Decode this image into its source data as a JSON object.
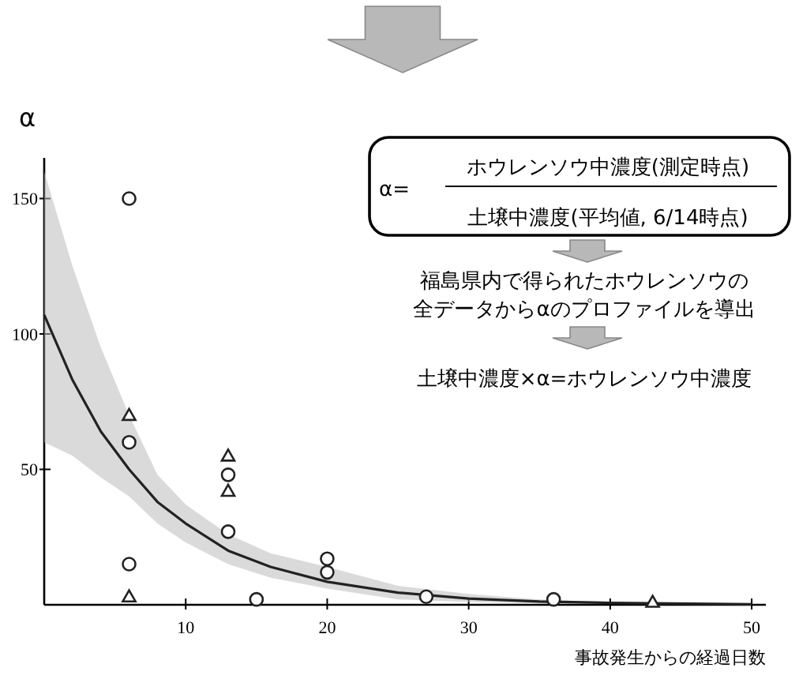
{
  "chart_data": {
    "type": "scatter",
    "ylabel": "α",
    "xlabel": "事故発生からの経過日数",
    "xlim": [
      0,
      51
    ],
    "ylim": [
      0,
      165
    ],
    "xticks": [
      10,
      20,
      30,
      40,
      50
    ],
    "yticks": [
      50,
      100,
      150
    ],
    "grid": false,
    "annotations": [
      "α=",
      "ホウレンソウ中濃度(測定時点)",
      "土壌中濃度(平均値, 6/14時点)",
      "福島県内で得られたホウレンソウの",
      "全データからαのプロファイルを導出",
      "土壌中濃度×α=ホウレンソウ中濃度"
    ],
    "series": [
      {
        "type": "line",
        "color": "#222222",
        "line_style": "solid",
        "x": [
          0,
          2,
          4,
          6,
          8,
          10,
          13,
          16,
          20,
          25,
          30,
          35,
          40,
          50
        ],
        "values": [
          107,
          83,
          64,
          50,
          38,
          30,
          20,
          14,
          8.5,
          4.5,
          2.3,
          1.2,
          0.7,
          0.2
        ],
        "lower": [
          60,
          55,
          47,
          40,
          30,
          23,
          15,
          10,
          6,
          2,
          1,
          0.5,
          0.3,
          0.1
        ],
        "upper": [
          160,
          125,
          95,
          70,
          48,
          37,
          26,
          19,
          14,
          7,
          4,
          2,
          1,
          0.5
        ]
      },
      {
        "color": "#222222",
        "marker": "circle",
        "x": [
          6,
          6,
          6,
          13,
          13,
          20,
          20,
          15,
          27,
          36
        ],
        "values": [
          150,
          60,
          15,
          48,
          27,
          17,
          12,
          2,
          3,
          2
        ]
      },
      {
        "color": "#222222",
        "marker": "triangle",
        "x": [
          6,
          13,
          13,
          6,
          43
        ],
        "values": [
          3,
          55,
          42,
          70,
          1
        ]
      }
    ]
  }
}
